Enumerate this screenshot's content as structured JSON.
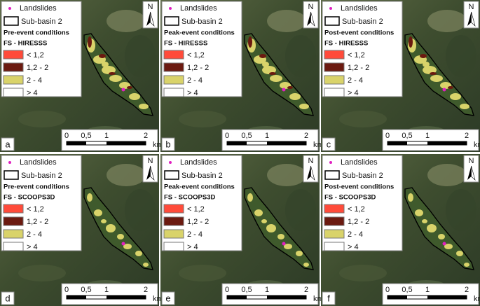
{
  "legend": {
    "landslides": "Landslides",
    "sub_basin": "Sub-basin 2",
    "classes": [
      {
        "label": "< 1,2",
        "color": "#ff4b3a"
      },
      {
        "label": "1,2 - 2",
        "color": "#6b1a10"
      },
      {
        "label": "2 - 4",
        "color": "#d9d36a"
      },
      {
        "label": "> 4",
        "color": "#ffffff"
      }
    ]
  },
  "north": "N",
  "scale": {
    "labels": [
      "0",
      "0,5",
      "1",
      "2"
    ],
    "unit": "km"
  },
  "panels": [
    {
      "letter": "a",
      "condition": "Pre-event conditions",
      "model": "FS - HIRESSS"
    },
    {
      "letter": "b",
      "condition": "Peak-event conditions",
      "model": "FS - HIRESSS"
    },
    {
      "letter": "c",
      "condition": "Post-event conditions",
      "model": "FS - HIRESSS"
    },
    {
      "letter": "d",
      "condition": "Pre-event conditions",
      "model": "FS - SCOOPS3D"
    },
    {
      "letter": "e",
      "condition": "Peak-event conditions",
      "model": "FS - SCOOPS3D"
    },
    {
      "letter": "f",
      "condition": "Post-event conditions",
      "model": "FS - SCOOPS3D"
    }
  ]
}
